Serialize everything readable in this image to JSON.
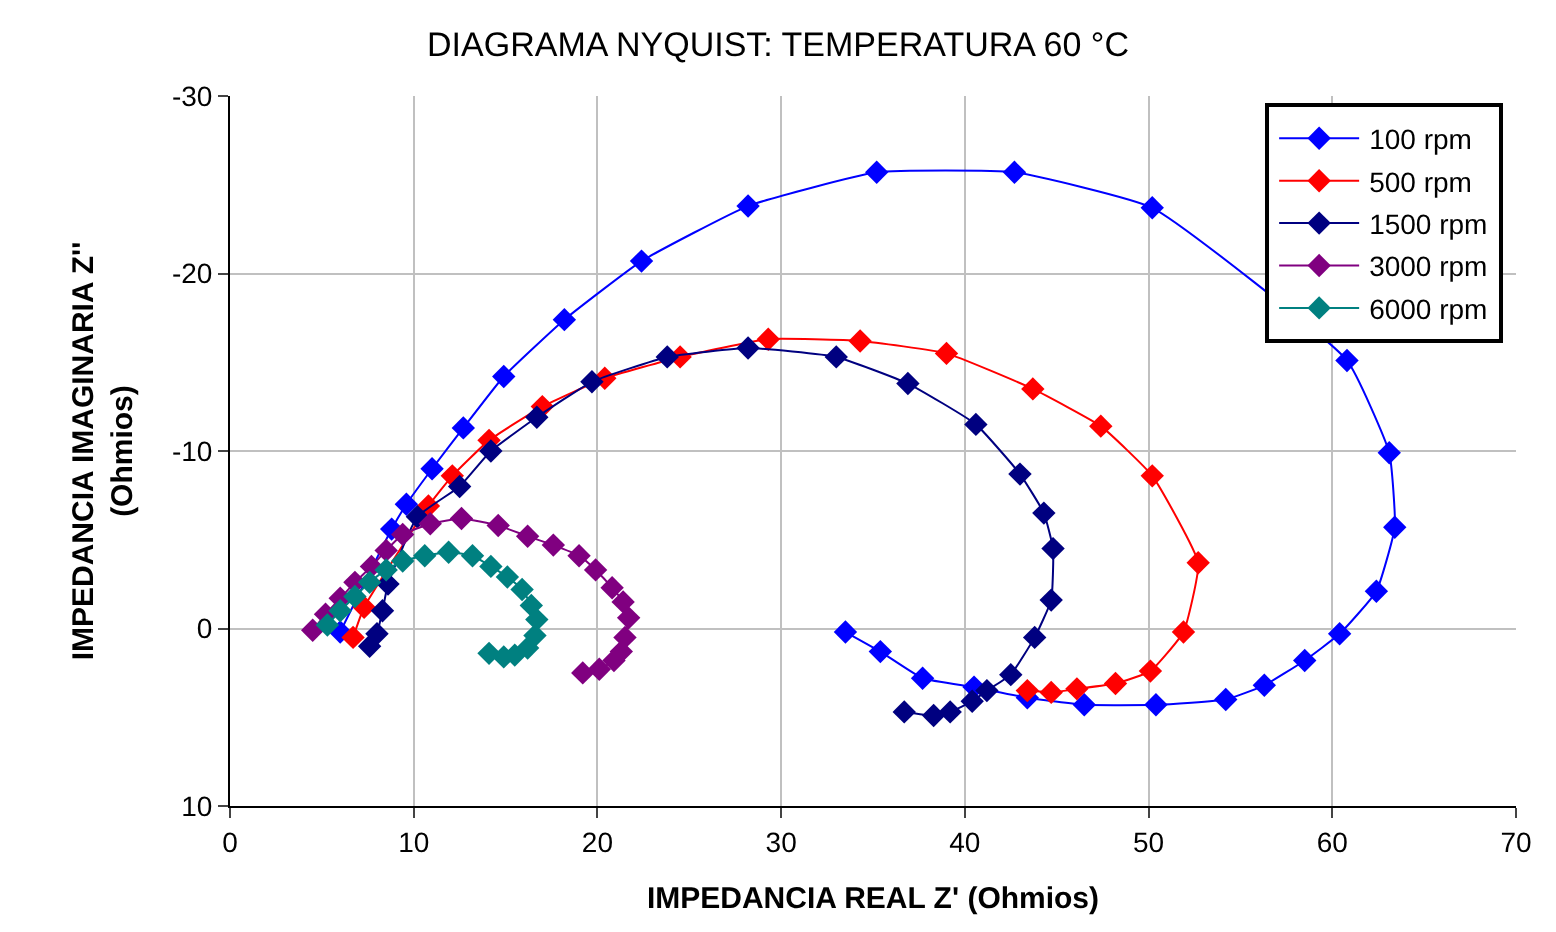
{
  "chart_data": {
    "type": "line",
    "title": "DIAGRAMA NYQUIST: TEMPERATURA 60 °C",
    "xlabel": "IMPEDANCIA REAL Z' (Ohmios)",
    "ylabel": "IMPEDANCIA IMAGINARIA Z''\n(Ohmios)",
    "xlim": [
      0,
      70
    ],
    "xticks": [
      0,
      10,
      20,
      30,
      40,
      50,
      60,
      70
    ],
    "ylim": [
      10,
      -30
    ],
    "yticks": [
      -30,
      -20,
      -10,
      0,
      10
    ],
    "grid": true,
    "legend": "top right",
    "marker": "diamond",
    "line_style": "solid",
    "series": [
      {
        "name": "100 rpm",
        "color": "#0000ff",
        "x": [
          6.0,
          7.0,
          8.0,
          8.8,
          9.6,
          11.0,
          12.7,
          14.9,
          18.2,
          22.4,
          28.2,
          35.2,
          42.7,
          50.2,
          60.8,
          63.1,
          63.4,
          62.4,
          60.4,
          58.5,
          56.3,
          54.2,
          50.4,
          46.5,
          43.4,
          40.5,
          37.7,
          35.4,
          33.5
        ],
        "values": [
          0.2,
          null,
          null,
          -5.6,
          -7.0,
          -9.0,
          -11.3,
          -14.2,
          -17.4,
          -20.7,
          -23.8,
          -25.7,
          -25.7,
          -23.7,
          -15.1,
          -9.9,
          -5.7,
          -2.1,
          0.3,
          1.8,
          3.2,
          4.0,
          4.3,
          4.3,
          3.9,
          3.3,
          2.8,
          1.3,
          0.2
        ]
      },
      {
        "name": "500 rpm",
        "color": "#ff0000",
        "x": [
          6.7,
          7.3,
          8.0,
          8.8,
          9.7,
          10.8,
          12.1,
          14.1,
          17.0,
          20.4,
          24.5,
          29.3,
          34.3,
          39.0,
          43.7,
          47.4,
          50.2,
          52.7,
          51.9,
          50.1,
          48.2,
          46.1,
          44.7,
          43.4
        ],
        "values": [
          0.5,
          -1.2,
          null,
          null,
          null,
          -6.9,
          -8.6,
          -10.6,
          -12.5,
          -14.1,
          -15.3,
          -16.3,
          -16.2,
          -15.5,
          -13.5,
          -11.4,
          -8.6,
          -3.7,
          0.2,
          2.4,
          3.1,
          3.4,
          3.6,
          3.5
        ]
      },
      {
        "name": "1500 rpm",
        "color": "#000080",
        "x": [
          7.6,
          8.0,
          8.3,
          8.6,
          9.2,
          10.2,
          12.5,
          14.2,
          16.7,
          19.7,
          23.8,
          28.2,
          33.0,
          36.9,
          40.6,
          43.0,
          44.3,
          44.8,
          44.7,
          43.8,
          42.5,
          41.2,
          40.4,
          39.2,
          38.3,
          36.7
        ],
        "values": [
          1.0,
          0.3,
          -1.0,
          -2.5,
          null,
          -6.3,
          -8.0,
          -10.0,
          -11.9,
          -13.9,
          -15.3,
          -15.8,
          -15.3,
          -13.8,
          -11.5,
          -8.7,
          -6.5,
          -4.5,
          -1.6,
          0.5,
          2.6,
          3.5,
          4.1,
          4.7,
          4.9,
          4.7
        ]
      },
      {
        "name": "3000 rpm",
        "color": "#800080",
        "x": [
          4.5,
          5.2,
          6.0,
          6.8,
          7.7,
          8.5,
          9.4,
          10.9,
          12.6,
          14.6,
          16.2,
          17.6,
          19.0,
          19.9,
          20.8,
          21.4,
          21.7,
          21.5,
          21.3,
          20.9,
          20.1,
          19.2
        ],
        "values": [
          0.1,
          -0.8,
          -1.7,
          -2.6,
          -3.5,
          -4.4,
          -5.3,
          -5.9,
          -6.2,
          -5.8,
          -5.2,
          -4.7,
          -4.1,
          -3.3,
          -2.3,
          -1.5,
          -0.6,
          0.5,
          1.3,
          1.8,
          2.3,
          2.5
        ]
      },
      {
        "name": "6000 rpm",
        "color": "#008080",
        "x": [
          5.3,
          6.0,
          6.8,
          7.6,
          8.5,
          9.4,
          10.6,
          11.9,
          13.2,
          14.2,
          15.1,
          15.9,
          16.4,
          16.7,
          16.6,
          16.2,
          15.5,
          14.9,
          14.1
        ],
        "values": [
          -0.2,
          -1.0,
          -1.8,
          -2.6,
          -3.3,
          -3.8,
          -4.1,
          -4.3,
          -4.1,
          -3.5,
          -2.9,
          -2.2,
          -1.3,
          -0.5,
          0.4,
          1.1,
          1.5,
          1.6,
          1.4
        ]
      }
    ]
  }
}
